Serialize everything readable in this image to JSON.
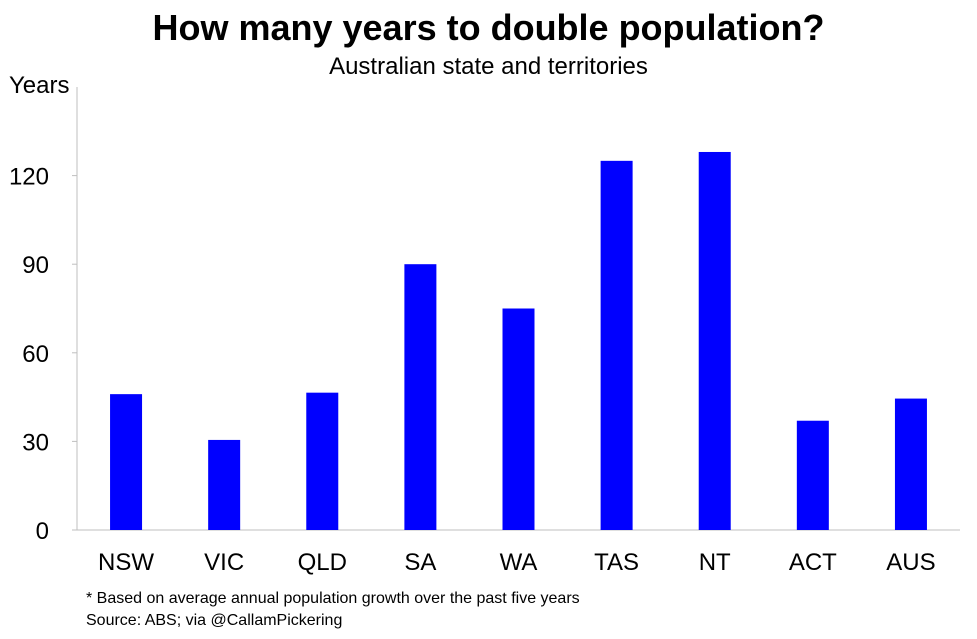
{
  "chart_data": {
    "type": "bar",
    "title": "How many years to double population?",
    "subtitle": "Australian state and territories",
    "ylabel": "Years",
    "xlabel": "",
    "categories": [
      "NSW",
      "VIC",
      "QLD",
      "SA",
      "WA",
      "TAS",
      "NT",
      "ACT",
      "AUS"
    ],
    "values": [
      46,
      30.5,
      46.5,
      90,
      75,
      125,
      128,
      37,
      44.5
    ],
    "ylim": [
      0,
      150
    ],
    "yticks": [
      0,
      30,
      60,
      90,
      120
    ],
    "bar_color": "#0000ff",
    "grid": false,
    "legend": "none"
  },
  "notes": {
    "footnote": "* Based on average annual population growth over the past five years",
    "source": "Source: ABS; via @CallamPickering"
  }
}
